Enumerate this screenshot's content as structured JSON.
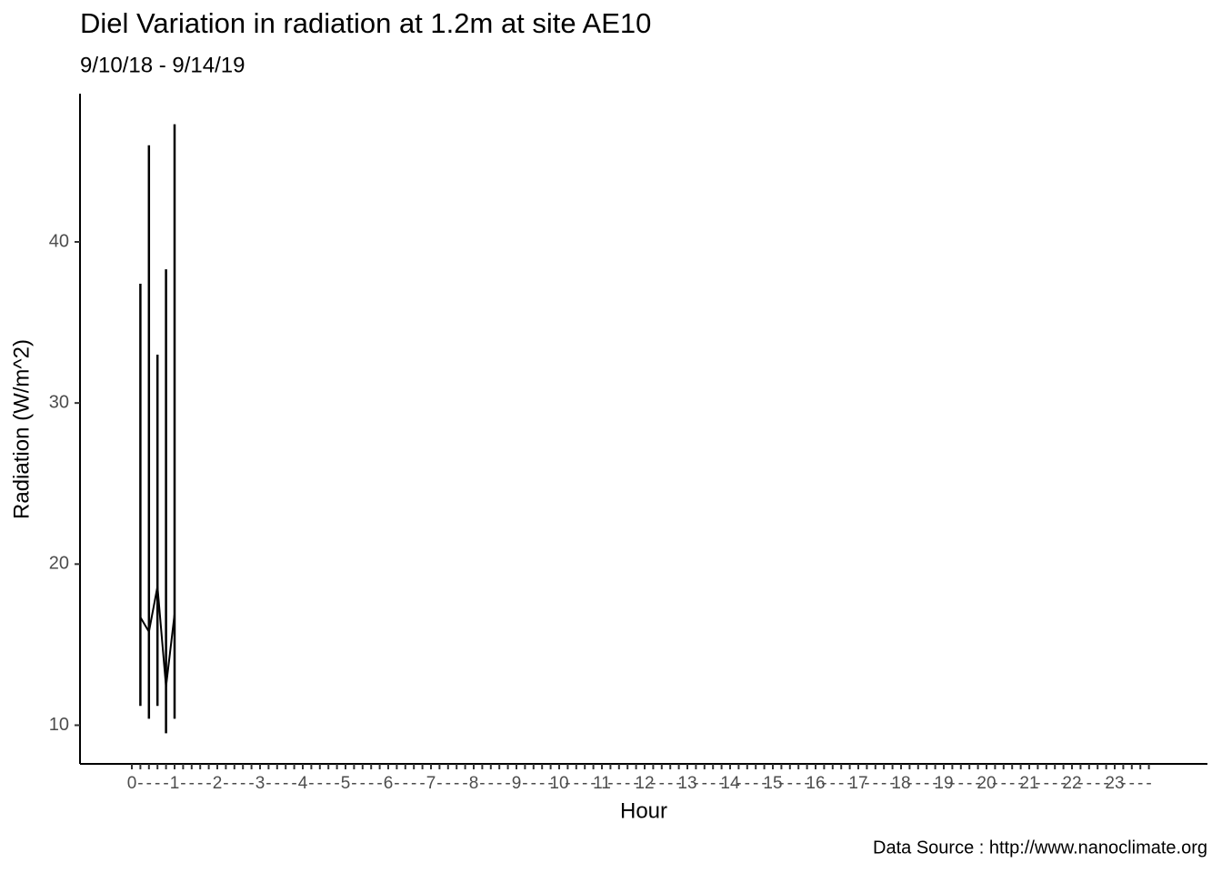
{
  "chart_data": {
    "type": "line",
    "title": "Diel Variation in radiation at 1.2m at site AE10",
    "subtitle": "9/10/18 - 9/14/19",
    "x_label": "Hour",
    "y_label": "Radiation (W/m^2)",
    "caption": "Data Source : http://www.nanoclimate.org",
    "categories": [
      "0",
      "-",
      "-",
      "-",
      "-",
      "1",
      "-",
      "-",
      "-",
      "-",
      "2",
      "-",
      "-",
      "-",
      "-",
      "3",
      "-",
      "-",
      "-",
      "-",
      "4",
      "-",
      "-",
      "-",
      "-",
      "5",
      "-",
      "-",
      "-",
      "-",
      "6",
      "-",
      "-",
      "-",
      "-",
      "7",
      "-",
      "-",
      "-",
      "-",
      "8",
      "-",
      "-",
      "-",
      "-",
      "9",
      "-",
      "-",
      "-",
      "-",
      "10",
      "-",
      "-",
      "-",
      "-",
      "11",
      "-",
      "-",
      "-",
      "-",
      "12",
      "-",
      "-",
      "-",
      "-",
      "13",
      "-",
      "-",
      "-",
      "-",
      "14",
      "-",
      "-",
      "-",
      "-",
      "15",
      "-",
      "-",
      "-",
      "-",
      "16",
      "-",
      "-",
      "-",
      "-",
      "17",
      "-",
      "-",
      "-",
      "-",
      "18",
      "-",
      "-",
      "-",
      "-",
      "19",
      "-",
      "-",
      "-",
      "-",
      "20",
      "-",
      "-",
      "-",
      "-",
      "21",
      "-",
      "-",
      "-",
      "-",
      "22",
      "-",
      "-",
      "-",
      "-",
      "23",
      "-",
      "-",
      "-",
      "-"
    ],
    "series": [
      {
        "color": "#000000",
        "values": [
          null,
          16.7,
          15.8,
          18.6,
          12.4,
          16.9,
          null,
          null,
          null,
          null,
          null,
          null,
          null,
          null,
          null,
          null,
          null,
          null,
          null,
          null,
          null,
          null,
          null,
          null,
          null,
          null,
          null,
          null,
          null,
          null,
          null,
          null,
          null,
          null,
          null,
          null,
          null,
          null,
          null,
          null,
          null,
          null,
          null,
          null,
          null,
          null,
          null,
          null,
          null,
          null,
          null,
          null,
          null,
          null,
          null,
          null,
          null,
          null,
          null,
          null,
          null,
          null,
          null,
          null,
          null,
          null,
          null,
          null,
          null,
          null,
          null,
          null,
          null,
          null,
          null,
          null,
          null,
          null,
          null,
          null,
          null,
          null,
          null,
          null,
          null,
          null,
          null,
          null,
          null,
          null,
          null,
          null,
          null,
          null,
          null,
          null,
          null,
          null,
          null,
          null,
          null,
          null,
          null,
          null,
          null,
          null,
          null,
          null,
          null,
          null,
          null,
          null,
          null,
          null,
          null,
          null,
          null,
          null,
          null,
          null
        ],
        "lower": [
          null,
          11.2,
          10.4,
          11.2,
          9.5,
          10.4
        ],
        "upper": [
          null,
          37.4,
          46.0,
          33.0,
          38.3,
          47.3
        ]
      }
    ],
    "ylim": [
      7.6,
      49.2
    ],
    "yticks": [
      10,
      20,
      30,
      40
    ],
    "grid": false
  }
}
